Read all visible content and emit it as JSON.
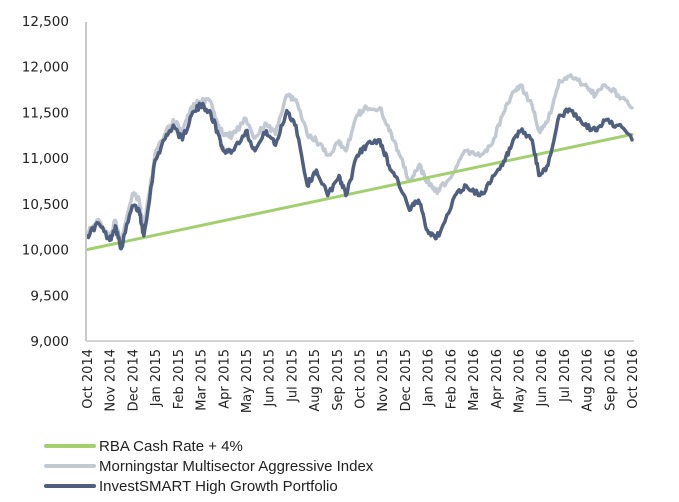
{
  "chart_data": {
    "type": "line",
    "title": "",
    "xlabel": "",
    "ylabel": "",
    "ylim": [
      9000,
      12500
    ],
    "yticks": [
      9000,
      9500,
      10000,
      10500,
      11000,
      11500,
      12000,
      12500
    ],
    "ytick_labels": [
      "9,000",
      "9,500",
      "10,000",
      "10,500",
      "11,000",
      "11,500",
      "12,000",
      "12,500"
    ],
    "grid": false,
    "legend_position": "bottom-left",
    "categories": [
      "Oct 2014",
      "Nov 2014",
      "Dec 2014",
      "Jan 2015",
      "Feb 2015",
      "Mar 2015",
      "Apr 2015",
      "May 2015",
      "Jun 2015",
      "Jul 2015",
      "Aug 2015",
      "Sep 2015",
      "Oct 2015",
      "Nov 2015",
      "Dec 2015",
      "Jan 2016",
      "Feb 2016",
      "Mar 2016",
      "Apr 2016",
      "May 2016",
      "Jun 2016",
      "Jul 2016",
      "Aug 2016",
      "Sep 2016",
      "Oct 2016"
    ],
    "x_months": [
      0,
      0.5,
      1,
      1.25,
      1.5,
      2,
      2.3,
      2.5,
      3,
      3.4,
      3.8,
      4.2,
      4.6,
      5,
      5.4,
      5.8,
      6,
      6.4,
      7,
      7.4,
      7.9,
      8.3,
      8.8,
      9.2,
      9.7,
      10.1,
      10.6,
      11.1,
      11.4,
      11.9,
      12.3,
      12.9,
      13.3,
      13.7,
      14.2,
      14.6,
      15.0,
      15.3,
      15.5,
      16.2,
      16.7,
      17.3,
      17.8,
      18.3,
      18.7,
      19.1,
      19.6,
      19.9,
      20.3,
      20.8,
      21.3,
      21.9,
      22.4,
      22.8,
      23.4,
      24
    ],
    "series": [
      {
        "name": "RBA Cash Rate + 4%",
        "color": "#a3cf6f",
        "x": [
          0,
          24
        ],
        "values": [
          10000,
          11260
        ]
      },
      {
        "name": "Morningstar Multisector Aggressive Index",
        "color": "#c3c9d3",
        "values": [
          10180,
          10330,
          10140,
          10320,
          10060,
          10610,
          10550,
          10220,
          11050,
          11250,
          11420,
          11290,
          11560,
          11620,
          11630,
          11360,
          11250,
          11250,
          11430,
          11220,
          11380,
          11260,
          11690,
          11640,
          11250,
          11190,
          11030,
          11190,
          11080,
          11470,
          11560,
          11550,
          11300,
          11080,
          10750,
          10920,
          10750,
          10640,
          10640,
          10860,
          11080,
          11020,
          11140,
          11470,
          11690,
          11800,
          11580,
          11300,
          11410,
          11850,
          11910,
          11800,
          11690,
          11800,
          11690,
          11550
        ]
      },
      {
        "name": "InvestSMART High Growth Portfolio",
        "color": "#4f5f7f",
        "values": [
          10150,
          10290,
          10100,
          10260,
          10010,
          10480,
          10430,
          10150,
          10980,
          11200,
          11360,
          11200,
          11470,
          11580,
          11520,
          11250,
          11080,
          11080,
          11300,
          11080,
          11300,
          11140,
          11520,
          11360,
          10700,
          10870,
          10590,
          10810,
          10590,
          11030,
          11140,
          11200,
          10920,
          10750,
          10430,
          10540,
          10210,
          10150,
          10150,
          10590,
          10700,
          10590,
          10750,
          10920,
          11140,
          11300,
          11200,
          10810,
          10920,
          11470,
          11520,
          11360,
          11300,
          11410,
          11360,
          11200
        ]
      }
    ]
  }
}
